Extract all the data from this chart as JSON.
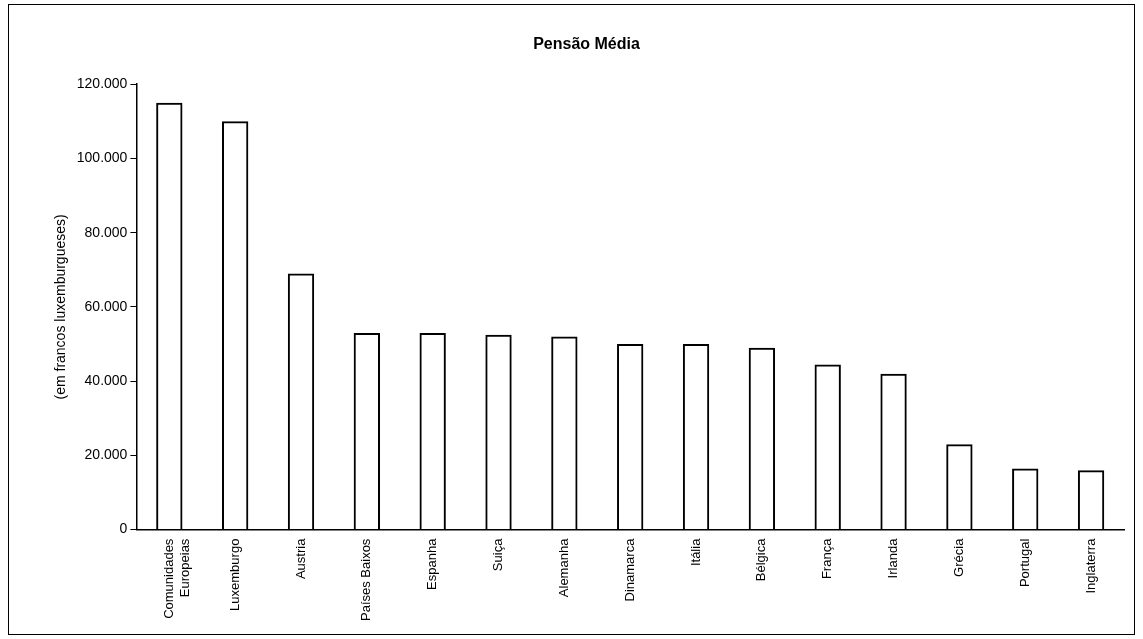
{
  "chart_data": {
    "type": "bar",
    "title": "Pensão Média",
    "ylabel": "(em francos luxemburgueses)",
    "categories": [
      "Comunidades\nEuropeias",
      "Luxemburgo",
      "Austria",
      "Países Baixos",
      "Espanha",
      "Suiça",
      "Alemanha",
      "Dinamarca",
      "Itália",
      "Bélgica",
      "França",
      "Irlanda",
      "Grécia",
      "Portugal",
      "Inglaterra"
    ],
    "values": [
      115000,
      110000,
      69000,
      53000,
      53000,
      52500,
      52000,
      50000,
      50000,
      49000,
      44500,
      42000,
      23000,
      16500,
      16000
    ],
    "color": "#000000",
    "ylim": [
      0,
      120000
    ],
    "yticks": [
      {
        "value": 0,
        "label": "0"
      },
      {
        "value": 20000,
        "label": "20.000"
      },
      {
        "value": 40000,
        "label": "40.000"
      },
      {
        "value": 60000,
        "label": "60.000"
      },
      {
        "value": 80000,
        "label": "80.000"
      },
      {
        "value": 100000,
        "label": "100.000"
      },
      {
        "value": 120000,
        "label": "120.000"
      }
    ],
    "grid": false,
    "legend": false
  }
}
